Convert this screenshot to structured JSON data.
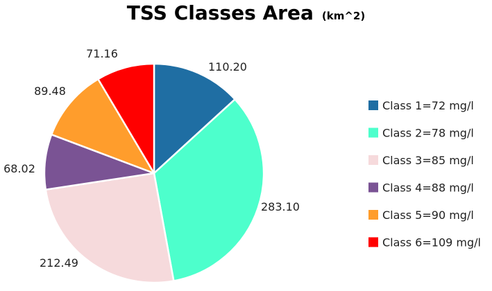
{
  "chart_data": {
    "type": "pie",
    "title": "TSS Classes Area",
    "subtitle": "(km^2)",
    "legend_position": "right",
    "slices": [
      {
        "label": "Class 1=72 mg/l",
        "value": 110.2,
        "value_label": "110.20",
        "color": "#1f6ea3"
      },
      {
        "label": "Class 2=78 mg/l",
        "value": 283.1,
        "value_label": "283.10",
        "color": "#4dffcc"
      },
      {
        "label": "Class 3=85 mg/l",
        "value": 212.49,
        "value_label": "212.49",
        "color": "#f6dadc"
      },
      {
        "label": "Class 4=88 mg/l",
        "value": 68.02,
        "value_label": "68.02",
        "color": "#7a5394"
      },
      {
        "label": "Class 5=90 mg/l",
        "value": 89.48,
        "value_label": "89.48",
        "color": "#ff9d2c"
      },
      {
        "label": "Class 6=109 mg/l",
        "value": 71.16,
        "value_label": "71.16",
        "color": "#ff0000"
      }
    ]
  }
}
